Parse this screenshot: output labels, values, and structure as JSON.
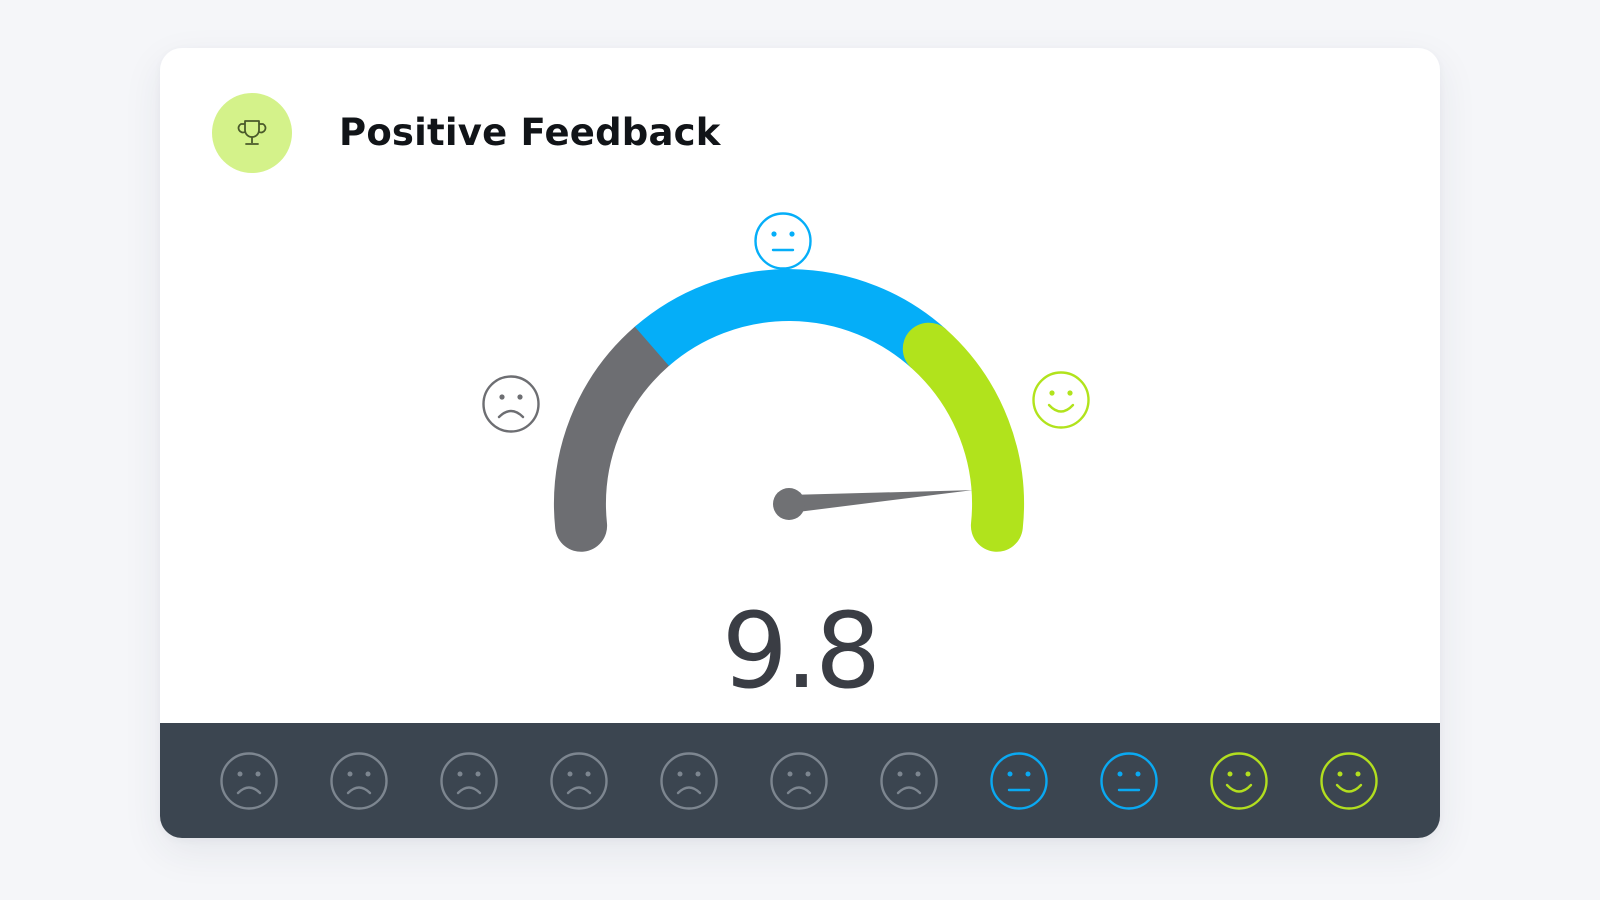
{
  "header": {
    "title": "Positive Feedback",
    "icon": "trophy-icon",
    "badge_color": "#d4f28a"
  },
  "gauge": {
    "score_text": "9.8",
    "score": 9.8,
    "scale_max": 10,
    "segments": [
      {
        "name": "negative",
        "color": "#6d6e72"
      },
      {
        "name": "neutral",
        "color": "#05aef8"
      },
      {
        "name": "positive",
        "color": "#b1e31c"
      }
    ],
    "markers": {
      "sad": "sad-face-icon",
      "neutral": "neutral-face-icon",
      "happy": "happy-face-icon"
    },
    "needle_color": "#707174"
  },
  "rating_bar": {
    "background": "#3b4550",
    "faces": [
      {
        "type": "sad",
        "color": "#7d8690"
      },
      {
        "type": "sad",
        "color": "#7d8690"
      },
      {
        "type": "sad",
        "color": "#7d8690"
      },
      {
        "type": "sad",
        "color": "#7d8690"
      },
      {
        "type": "sad",
        "color": "#7d8690"
      },
      {
        "type": "sad",
        "color": "#7d8690"
      },
      {
        "type": "sad",
        "color": "#7d8690"
      },
      {
        "type": "neutral",
        "color": "#0aa9f2"
      },
      {
        "type": "neutral",
        "color": "#0aa9f2"
      },
      {
        "type": "happy",
        "color": "#b2de1f"
      },
      {
        "type": "happy",
        "color": "#b2de1f"
      }
    ]
  }
}
